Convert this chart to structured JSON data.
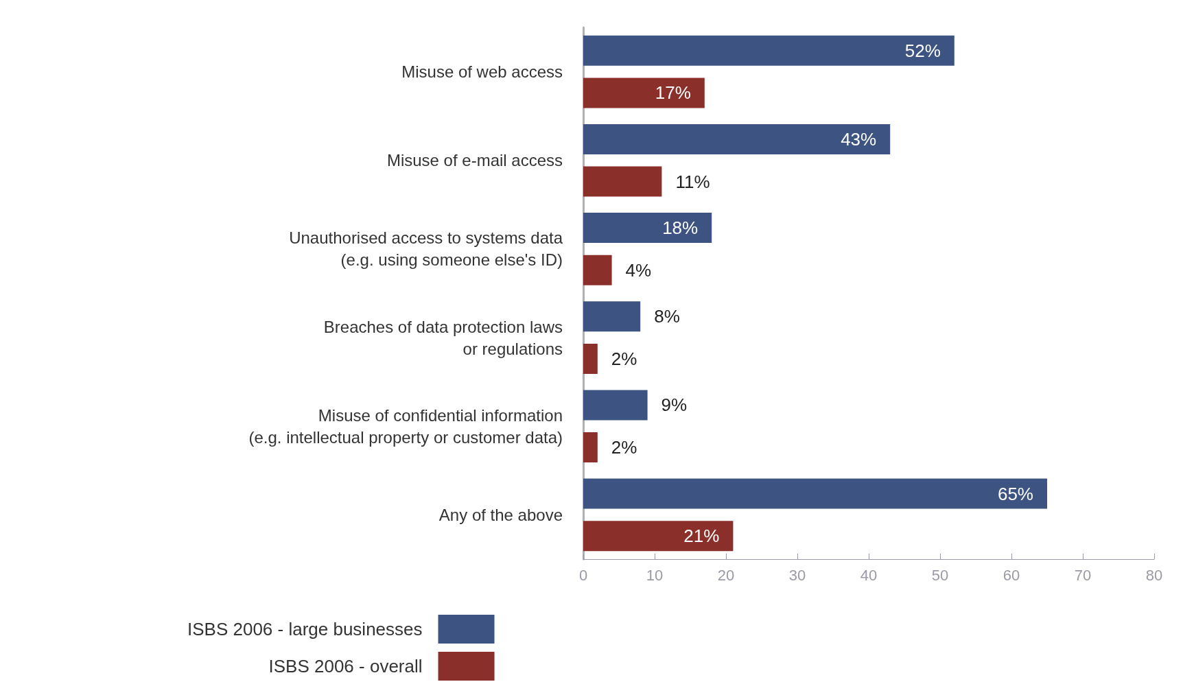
{
  "chart_data": {
    "type": "bar",
    "orientation": "horizontal",
    "categories": [
      "Misuse of web access",
      "Misuse of e-mail access",
      "Unauthorised access to systems data\n(e.g. using someone else's ID)",
      "Breaches of data protection laws\nor regulations",
      "Misuse of confidential information\n(e.g. intellectual property or customer data)",
      "Any of the above"
    ],
    "series": [
      {
        "name": "ISBS 2006 - large businesses",
        "color": "#3d5482",
        "values": [
          52,
          43,
          18,
          8,
          9,
          65
        ],
        "value_labels": [
          "52%",
          "43%",
          "18%",
          "8%",
          "9%",
          "65%"
        ]
      },
      {
        "name": "ISBS 2006 - overall",
        "color": "#8b2f2a",
        "values": [
          17,
          11,
          4,
          2,
          2,
          21
        ],
        "value_labels": [
          "17%",
          "11%",
          "4%",
          "2%",
          "2%",
          "21%"
        ]
      }
    ],
    "xlim": [
      0,
      80
    ],
    "xticks": [
      0,
      10,
      20,
      30,
      40,
      50,
      60,
      70,
      80
    ],
    "grid": false,
    "legend": "bottom left"
  }
}
